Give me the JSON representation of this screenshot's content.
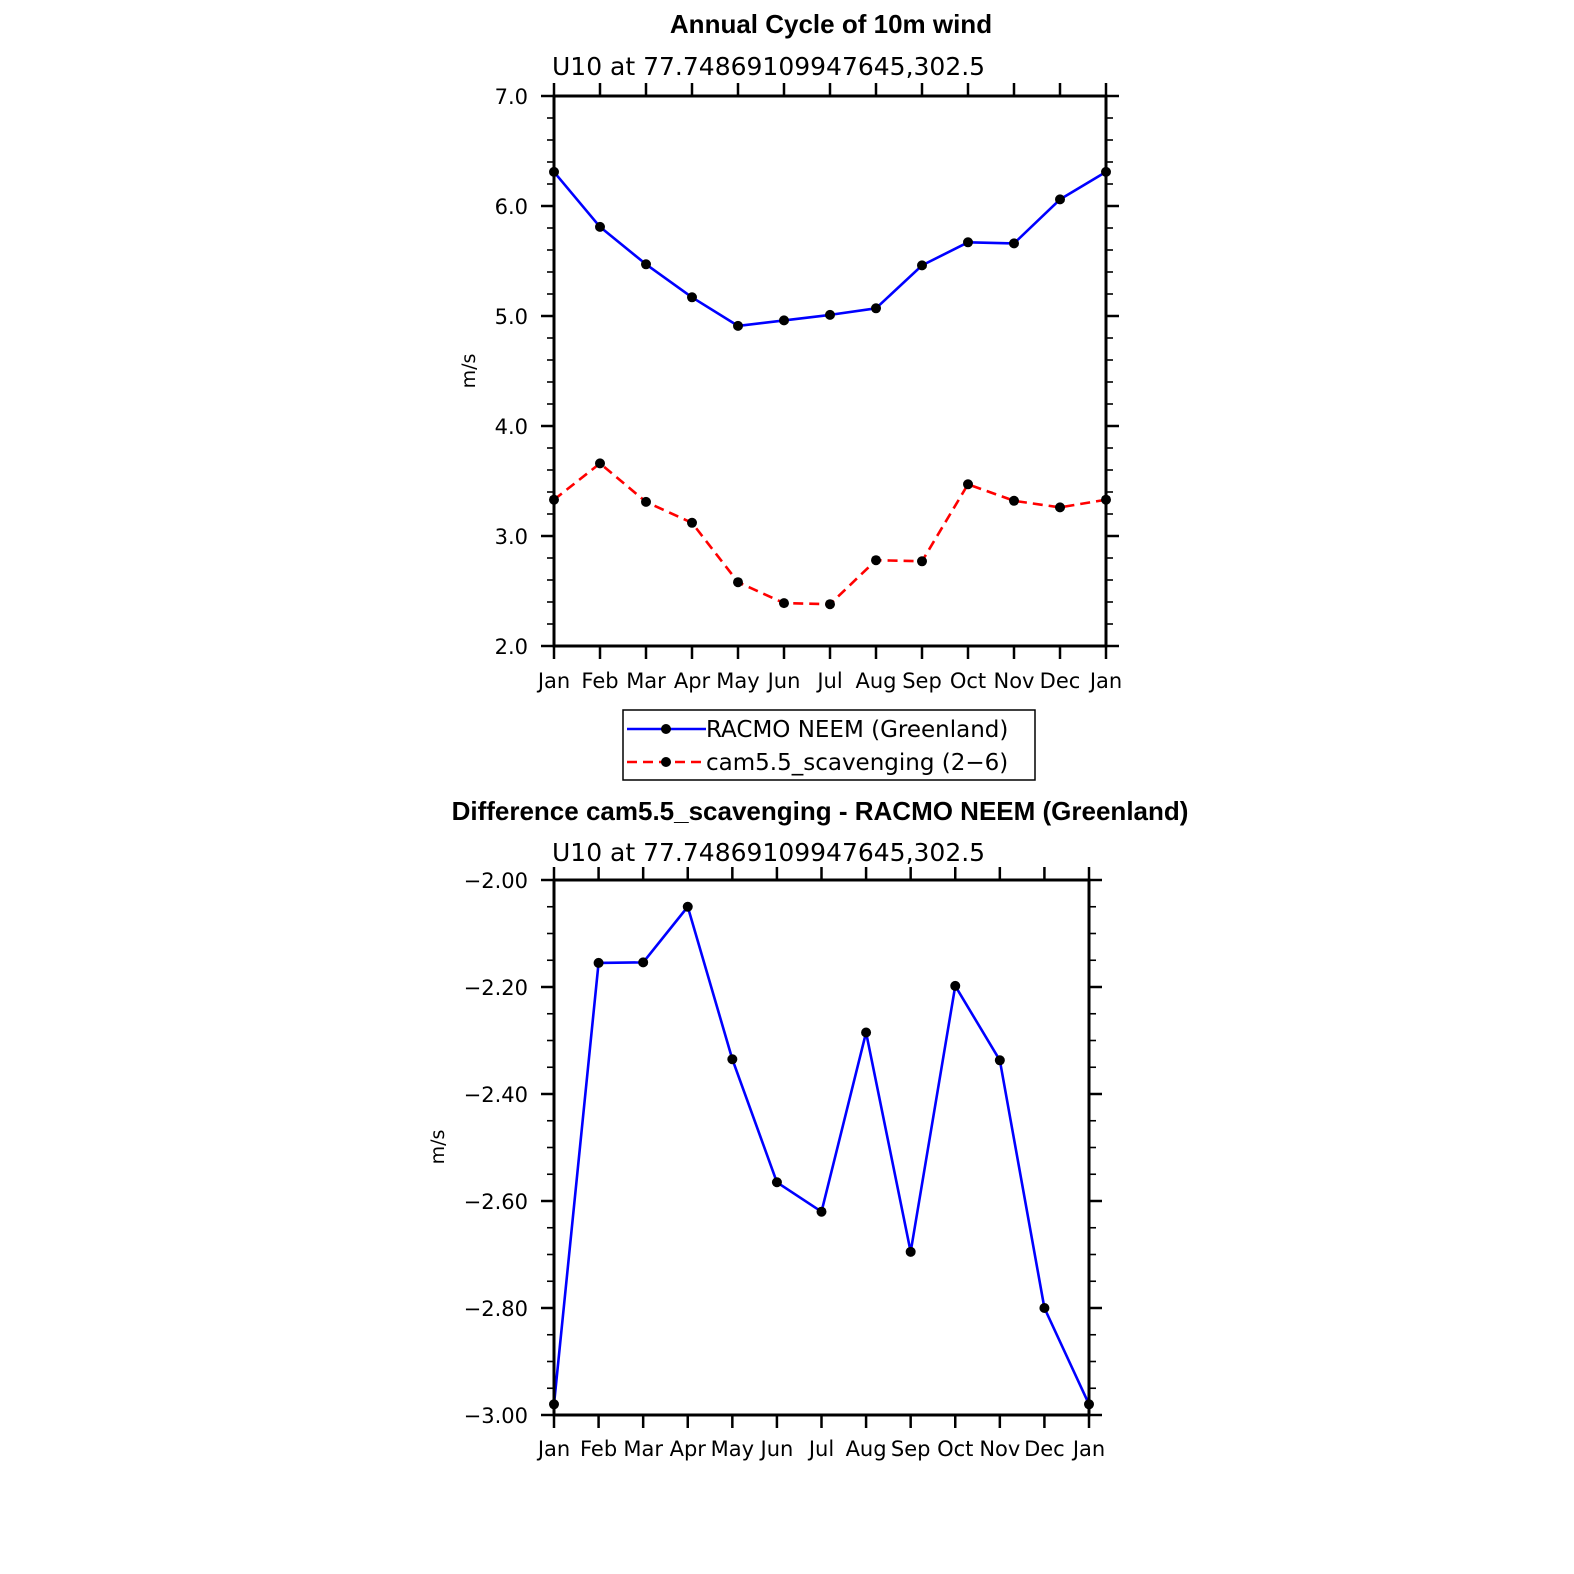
{
  "chart_data": [
    {
      "type": "line",
      "title": "Annual Cycle of 10m wind",
      "subtitle": "U10 at 77.74869109947645,302.5",
      "xlabel": "",
      "ylabel": "m/s",
      "categories": [
        "Jan",
        "Feb",
        "Mar",
        "Apr",
        "May",
        "Jun",
        "Jul",
        "Aug",
        "Sep",
        "Oct",
        "Nov",
        "Dec",
        "Jan"
      ],
      "ylim": [
        2.0,
        7.0
      ],
      "yticks": [
        2.0,
        3.0,
        4.0,
        5.0,
        6.0,
        7.0
      ],
      "ytick_labels": [
        "2.0",
        "3.0",
        "4.0",
        "5.0",
        "6.0",
        "7.0"
      ],
      "series": [
        {
          "name": "RACMO NEEM (Greenland)",
          "color": "#0000ff",
          "dash": "solid",
          "values": [
            6.31,
            5.81,
            5.47,
            5.17,
            4.91,
            4.96,
            5.01,
            5.07,
            5.46,
            5.67,
            5.66,
            6.06,
            6.31
          ]
        },
        {
          "name": "cam5.5_scavenging (2−6)",
          "color": "#ff0000",
          "dash": "dashed",
          "values": [
            3.33,
            3.66,
            3.31,
            3.12,
            2.58,
            2.39,
            2.38,
            2.78,
            2.77,
            3.47,
            3.32,
            3.26,
            3.33
          ]
        }
      ]
    },
    {
      "type": "line",
      "title": "Difference cam5.5_scavenging - RACMO NEEM (Greenland)",
      "subtitle": "U10 at 77.74869109947645,302.5",
      "xlabel": "",
      "ylabel": "m/s",
      "categories": [
        "Jan",
        "Feb",
        "Mar",
        "Apr",
        "May",
        "Jun",
        "Jul",
        "Aug",
        "Sep",
        "Oct",
        "Nov",
        "Dec",
        "Jan"
      ],
      "ylim": [
        -3.0,
        -2.0
      ],
      "yticks": [
        -3.0,
        -2.8,
        -2.6,
        -2.4,
        -2.2,
        -2.0
      ],
      "ytick_labels": [
        "−3.00",
        "−2.80",
        "−2.60",
        "−2.40",
        "−2.20",
        "−2.00"
      ],
      "series": [
        {
          "name": "cam5.5_scavenging - RACMO NEEM (Greenland)",
          "color": "#0000ff",
          "dash": "solid",
          "values": [
            -2.98,
            -2.155,
            -2.154,
            -2.05,
            -2.335,
            -2.565,
            -2.62,
            -2.285,
            -2.695,
            -2.198,
            -2.337,
            -2.8,
            -2.98
          ]
        }
      ]
    }
  ]
}
